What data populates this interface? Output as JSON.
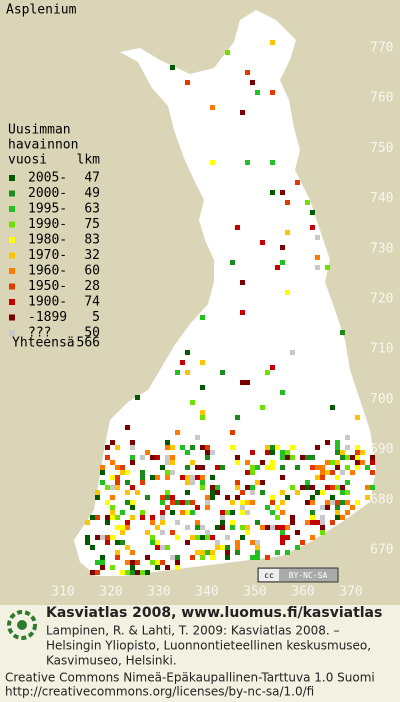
{
  "title": "Asplenium",
  "legend": {
    "heading": [
      "Uusimman",
      "havainnon",
      "vuosi"
    ],
    "count_heading": "lkm",
    "rows": [
      {
        "label": "2005-",
        "count": 47,
        "color": "#005a00"
      },
      {
        "label": "2000-",
        "count": 49,
        "color": "#1a8a1a"
      },
      {
        "label": "1995-",
        "count": 63,
        "color": "#22c022"
      },
      {
        "label": "1990-",
        "count": 75,
        "color": "#70e000"
      },
      {
        "label": "1980-",
        "count": 83,
        "color": "#ffff00"
      },
      {
        "label": "1970-",
        "count": 32,
        "color": "#ffc400"
      },
      {
        "label": "1960-",
        "count": 60,
        "color": "#ff7a00"
      },
      {
        "label": "1950-",
        "count": 28,
        "color": "#e23a00"
      },
      {
        "label": "1900-",
        "count": 74,
        "color": "#c40000"
      },
      {
        "label": "-1899",
        "count": 5,
        "color": "#7a0000"
      },
      {
        "label": "???",
        "count": 50,
        "color": "#c8c8c8"
      }
    ],
    "total_label": "Yhteensä",
    "total": 566
  },
  "y_labels": [
    770,
    760,
    750,
    740,
    730,
    720,
    710,
    700,
    690,
    680,
    670
  ],
  "x_labels": [
    310,
    320,
    330,
    340,
    350,
    360,
    370
  ],
  "license_badge": [
    "cc",
    "BY-NC-SA"
  ],
  "footer": {
    "title": "Kasviatlas 2008, www.luomus.fi/kasviatlas",
    "citation": [
      "Lampinen, R. & Lahti, T. 2009: Kasviatlas 2008. –",
      "Helsingin Yliopisto, Luonnontieteellinen keskusmuseo,",
      "Kasvimuseo, Helsinki."
    ],
    "license": [
      "Creative Commons Nimeä-Epäkaupallinen-Tarttuva 1.0 Suomi",
      "http://creativecommons.org/licenses/by-nc-sa/1.0/fi"
    ]
  }
}
